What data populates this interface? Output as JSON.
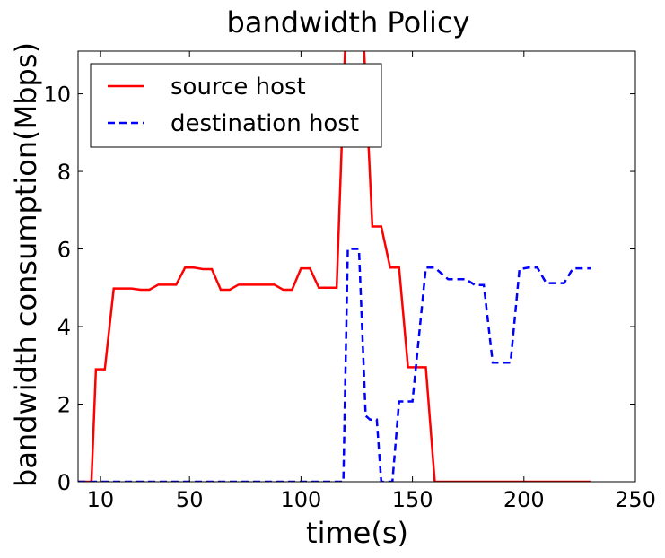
{
  "chart_data": {
    "type": "line",
    "title": "bandwidth Policy",
    "xlabel": "time(s)",
    "ylabel": "bandwidth consumption(Mbps)",
    "xlim": [
      0,
      250
    ],
    "ylim": [
      0,
      11.1
    ],
    "xticks": [
      10,
      50,
      100,
      150,
      200,
      250
    ],
    "yticks": [
      0,
      2,
      4,
      6,
      8,
      10
    ],
    "grid": false,
    "legend_position": "top-left",
    "series": [
      {
        "name": "source host",
        "color": "#ff0000",
        "style": "solid",
        "x": [
          0,
          6,
          8,
          12,
          16,
          20,
          24,
          28,
          32,
          36,
          40,
          44,
          48,
          52,
          56,
          60,
          64,
          68,
          72,
          76,
          80,
          84,
          88,
          92,
          96,
          100,
          104,
          108,
          112,
          116,
          120,
          124,
          128,
          132,
          136,
          140,
          144,
          148,
          152,
          156,
          160,
          164,
          168,
          172,
          176,
          180,
          190,
          200,
          210,
          220,
          230
        ],
        "y": [
          0,
          0,
          2.9,
          2.9,
          4.98,
          4.98,
          4.98,
          4.95,
          4.95,
          5.08,
          5.08,
          5.08,
          5.52,
          5.52,
          5.48,
          5.48,
          4.95,
          4.95,
          5.08,
          5.08,
          5.08,
          5.08,
          5.08,
          4.95,
          4.95,
          5.5,
          5.5,
          5.0,
          5.0,
          5.0,
          11.5,
          11.5,
          11.5,
          6.58,
          6.58,
          5.52,
          5.52,
          2.95,
          2.95,
          2.95,
          0,
          0,
          0,
          0,
          0,
          0,
          0,
          0,
          0,
          0,
          0
        ]
      },
      {
        "name": "destination host",
        "color": "#0000ff",
        "style": "dashed",
        "x": [
          0,
          12,
          20,
          40,
          60,
          80,
          100,
          110,
          119,
          121,
          124,
          126,
          129,
          131,
          134,
          136,
          139,
          141,
          144,
          146,
          150,
          156,
          160,
          166,
          170,
          174,
          178,
          182,
          186,
          190,
          194,
          198,
          202,
          206,
          210,
          214,
          218,
          222,
          226,
          230
        ],
        "y": [
          0,
          0,
          0,
          0,
          0,
          0,
          0,
          0,
          0,
          6.0,
          6.0,
          6.0,
          1.7,
          1.6,
          1.6,
          0,
          0,
          0,
          2.07,
          2.07,
          2.07,
          5.52,
          5.52,
          5.22,
          5.22,
          5.22,
          5.07,
          5.07,
          3.07,
          3.07,
          3.07,
          5.48,
          5.52,
          5.52,
          5.12,
          5.12,
          5.12,
          5.5,
          5.5,
          5.5
        ]
      }
    ]
  }
}
